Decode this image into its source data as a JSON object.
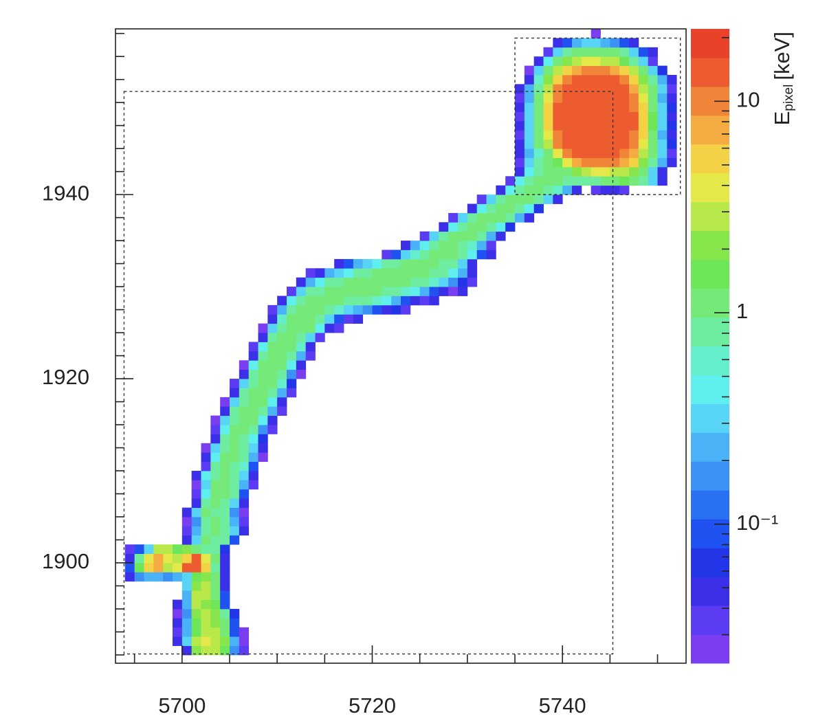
{
  "chart_data": {
    "type": "heatmap",
    "xlim": [
      5693,
      5753
    ],
    "ylim": [
      1889.1,
      1958
    ],
    "xticks": [
      5700,
      5720,
      5740
    ],
    "xminor": [
      5695,
      5705,
      5710,
      5715,
      5725,
      5730,
      5735,
      5745,
      5750
    ],
    "yticks": [
      1900,
      1920,
      1940
    ],
    "yminor": [
      1890,
      1892.5,
      1895,
      1897.5,
      1902.5,
      1905,
      1907.5,
      1910,
      1912.5,
      1915,
      1917.5,
      1922.5,
      1925,
      1927.5,
      1930,
      1932.5,
      1935,
      1937.5,
      1942.5,
      1945,
      1947.5,
      1950,
      1952.5,
      1955,
      1957.5
    ],
    "zlog": true,
    "zlim": [
      0.022,
      22
    ],
    "zticks": [
      10,
      1,
      {
        "value": 0.1,
        "label": "10⁻¹"
      }
    ],
    "zminor": [
      0.03,
      0.04,
      0.05,
      0.06,
      0.07,
      0.08,
      0.09,
      0.2,
      0.3,
      0.4,
      0.5,
      0.6,
      0.7,
      0.8,
      0.9,
      2,
      3,
      4,
      5,
      6,
      7,
      8,
      9,
      20
    ],
    "colorbar_label": {
      "symbol": "E",
      "subscript": "pixel",
      "unit": "[keV]"
    },
    "colors": [
      "#7a3df0",
      "#5b3cf2",
      "#3b2fe8",
      "#2236e8",
      "#1f52f0",
      "#2a70f2",
      "#3b92f4",
      "#4ab2f6",
      "#58d4f6",
      "#5eefee",
      "#64eecb",
      "#6eec9f",
      "#76ea78",
      "#6ee65a",
      "#86e64c",
      "#b8e84a",
      "#e4e848",
      "#f4d246",
      "#f4ac42",
      "#f08438",
      "#ec5c30",
      "#e8422a"
    ],
    "boxes": [
      {
        "x": [
          5693.9,
          5745.3
        ],
        "y": [
          1890.1,
          1951.2
        ]
      },
      {
        "x": [
          5735,
          5752.4
        ],
        "y": [
          1940,
          1957
        ]
      }
    ],
    "rows": [
      {
        "y": 1890,
        "x0": 5700,
        "values": [
          0.05,
          2,
          3,
          3,
          1.5,
          0.15,
          0.04
        ]
      },
      {
        "y": 1891,
        "x0": 5699,
        "values": [
          0.05,
          0.3,
          2.5,
          3.5,
          3,
          2,
          0.2,
          0.03
        ]
      },
      {
        "y": 1892,
        "x0": 5699,
        "values": [
          0.04,
          0.2,
          1.5,
          3,
          2.5,
          1.2,
          0.1,
          0.03
        ]
      },
      {
        "y": 1893,
        "x0": 5699,
        "values": [
          0.05,
          0.2,
          1.5,
          2.5,
          2,
          1,
          0.08
        ]
      },
      {
        "y": 1894,
        "x0": 5699,
        "values": [
          0.03,
          0.15,
          2,
          3,
          2,
          0.8,
          0.06
        ]
      },
      {
        "y": 1895,
        "x0": 5699,
        "values": [
          0.05,
          0.2,
          2.5,
          2,
          1.5,
          0.1
        ]
      },
      {
        "y": 1896,
        "x0": 5700,
        "values": [
          0.2,
          3,
          2.5,
          1.2,
          0.08
        ]
      },
      {
        "y": 1897,
        "x0": 5700,
        "values": [
          0.3,
          2,
          3,
          1,
          0.05
        ]
      },
      {
        "y": 1898,
        "x0": 5694,
        "values": [
          0.05,
          0.15,
          0.2,
          0.2,
          0.15,
          0.2,
          0.3,
          1.5,
          2,
          1.2,
          0.05
        ]
      },
      {
        "y": 1899,
        "x0": 5694,
        "values": [
          0.08,
          1.5,
          5,
          7,
          3,
          4,
          12,
          15,
          6,
          0.8,
          0.05
        ]
      },
      {
        "y": 1900,
        "x0": 5694,
        "values": [
          0.05,
          0.8,
          4,
          8,
          4,
          3,
          6,
          14,
          4,
          1,
          0.05
        ]
      },
      {
        "y": 1901,
        "x0": 5694,
        "values": [
          0.04,
          0.1,
          0.3,
          3,
          2.5,
          1.5,
          2,
          1.2,
          0.8,
          0.7,
          0.06
        ]
      },
      {
        "y": 1902,
        "x0": 5700,
        "values": [
          0.05,
          0.3,
          1,
          0.8,
          0.7,
          0.08
        ]
      },
      {
        "y": 1903,
        "x0": 5700,
        "values": [
          0.04,
          0.2,
          0.9,
          1,
          0.7,
          0.3,
          0.05
        ]
      },
      {
        "y": 1904,
        "x0": 5700,
        "values": [
          0.03,
          0.15,
          0.8,
          1,
          0.8,
          0.2,
          0.04
        ]
      },
      {
        "y": 1905,
        "x0": 5700,
        "values": [
          0.05,
          0.3,
          1,
          0.9,
          0.8,
          0.15,
          0.03
        ]
      },
      {
        "y": 1906,
        "x0": 5701,
        "values": [
          0.05,
          0.8,
          1,
          0.9,
          0.3,
          0.05
        ]
      },
      {
        "y": 1907,
        "x0": 5701,
        "values": [
          0.04,
          0.5,
          1,
          1,
          0.7,
          0.1
        ]
      },
      {
        "y": 1908,
        "x0": 5701,
        "values": [
          0.03,
          0.3,
          1,
          1,
          0.8,
          0.2,
          0.04
        ]
      },
      {
        "y": 1909,
        "x0": 5701,
        "values": [
          0.05,
          0.4,
          0.9,
          1,
          0.9,
          0.3,
          0.05
        ]
      },
      {
        "y": 1910,
        "x0": 5702,
        "values": [
          0.04,
          0.8,
          1,
          0.9,
          0.6,
          0.08
        ]
      },
      {
        "y": 1911,
        "x0": 5702,
        "values": [
          0.05,
          0.5,
          1,
          1,
          0.8,
          0.2,
          0.03
        ]
      },
      {
        "y": 1912,
        "x0": 5702,
        "values": [
          0.03,
          0.3,
          0.9,
          1.1,
          0.9,
          0.3,
          0.05
        ]
      },
      {
        "y": 1913,
        "x0": 5703,
        "values": [
          0.05,
          0.8,
          1,
          0.9,
          0.4,
          0.06
        ]
      },
      {
        "y": 1914,
        "x0": 5703,
        "values": [
          0.04,
          0.5,
          1,
          1,
          0.8,
          0.15,
          0.04
        ]
      },
      {
        "y": 1915,
        "x0": 5703,
        "values": [
          0.03,
          0.3,
          0.9,
          1,
          1,
          0.5,
          0.05
        ]
      },
      {
        "y": 1916,
        "x0": 5704,
        "values": [
          0.05,
          0.7,
          1,
          1,
          0.8,
          0.2,
          0.04
        ]
      },
      {
        "y": 1917,
        "x0": 5704,
        "values": [
          0.03,
          0.3,
          0.9,
          1.1,
          1,
          0.5,
          0.05
        ]
      },
      {
        "y": 1918,
        "x0": 5705,
        "values": [
          0.05,
          0.7,
          1,
          1,
          0.9,
          0.2,
          0.04
        ]
      },
      {
        "y": 1919,
        "x0": 5705,
        "values": [
          0.04,
          0.3,
          0.9,
          1,
          1,
          0.6,
          0.06
        ]
      },
      {
        "y": 1920,
        "x0": 5706,
        "values": [
          0.05,
          0.8,
          1,
          1,
          0.8,
          0.15,
          0.03
        ]
      },
      {
        "y": 1921,
        "x0": 5706,
        "values": [
          0.03,
          0.4,
          1,
          1.1,
          1,
          0.5,
          0.05
        ]
      },
      {
        "y": 1922,
        "x0": 5707,
        "values": [
          0.05,
          0.9,
          1,
          1,
          0.9,
          0.2,
          0.04
        ]
      },
      {
        "y": 1923,
        "x0": 5707,
        "values": [
          0.04,
          0.4,
          1,
          1,
          1,
          0.6,
          0.05
        ]
      },
      {
        "y": 1924,
        "x0": 5708,
        "values": [
          0.05,
          0.8,
          1,
          1,
          0.9,
          0.3,
          0.04
        ]
      },
      {
        "y": 1925,
        "x0": 5708,
        "values": [
          0.03,
          0.3,
          0.9,
          1,
          1,
          1,
          0.5,
          0.05,
          0.04
        ]
      },
      {
        "y": 1926,
        "x0": 5709,
        "values": [
          0.05,
          0.6,
          1,
          1,
          1,
          0.8,
          0.3,
          0.08,
          0.04,
          0.05
        ]
      },
      {
        "y": 1927,
        "x0": 5709,
        "values": [
          0.04,
          0.2,
          0.8,
          1,
          1,
          1,
          0.9,
          0.6,
          0.3,
          0.2,
          0.15,
          0.08,
          0.05,
          0.06,
          0.04
        ]
      },
      {
        "y": 1928,
        "x0": 5710,
        "values": [
          0.05,
          0.4,
          0.9,
          1,
          1,
          1,
          1,
          0.9,
          0.9,
          0.8,
          0.6,
          0.4,
          0.2,
          0.1,
          0.05,
          0.04,
          0.05
        ]
      },
      {
        "y": 1929,
        "x0": 5711,
        "values": [
          0.04,
          0.3,
          0.8,
          0.9,
          1,
          1,
          1,
          1,
          1,
          1,
          0.9,
          0.8,
          0.6,
          0.4,
          0.2,
          0.1,
          0.05,
          0.03,
          0.05
        ]
      },
      {
        "y": 1930,
        "x0": 5712,
        "values": [
          0.05,
          0.2,
          0.4,
          0.8,
          0.9,
          1,
          1,
          1,
          1,
          1,
          1,
          1,
          0.9,
          0.8,
          0.6,
          0.3,
          0.15,
          0.06,
          0.04
        ]
      },
      {
        "y": 1931,
        "x0": 5713,
        "values": [
          0.04,
          0.05,
          0.2,
          0.3,
          0.5,
          0.7,
          0.9,
          1,
          1,
          1,
          1,
          1,
          1,
          0.9,
          0.8,
          0.5,
          0.2,
          0.05
        ]
      },
      {
        "y": 1932,
        "x0": 5716,
        "values": [
          0.05,
          0.1,
          0.2,
          0.3,
          0.5,
          0.7,
          0.9,
          1,
          1,
          1,
          1,
          0.9,
          0.7,
          0.3,
          0.05
        ]
      },
      {
        "y": 1933,
        "x0": 5721,
        "values": [
          0.04,
          0.1,
          0.3,
          0.6,
          0.9,
          1,
          1,
          1,
          0.8,
          0.4,
          0.1,
          0.05
        ]
      },
      {
        "y": 1934,
        "x0": 5723,
        "values": [
          0.05,
          0.2,
          0.5,
          0.9,
          1,
          1,
          0.9,
          0.6,
          0.2,
          0.04
        ]
      },
      {
        "y": 1935,
        "x0": 5725,
        "values": [
          0.04,
          0.3,
          0.8,
          1,
          1,
          1,
          0.7,
          0.2,
          0.05
        ]
      },
      {
        "y": 1936,
        "x0": 5727,
        "values": [
          0.05,
          0.5,
          0.9,
          1,
          1,
          0.9,
          0.4,
          0.06
        ]
      },
      {
        "y": 1937,
        "x0": 5728,
        "values": [
          0.04,
          0.3,
          0.8,
          1,
          1,
          1,
          0.7,
          0.2,
          0.05
        ]
      },
      {
        "y": 1938,
        "x0": 5730,
        "values": [
          0.05,
          0.5,
          0.9,
          1,
          1,
          0.9,
          0.5,
          0.06
        ]
      },
      {
        "y": 1939,
        "x0": 5731,
        "values": [
          0.04,
          0.3,
          0.8,
          1,
          1,
          1,
          0.8,
          0.3,
          0.05
        ]
      },
      {
        "y": 1940,
        "x0": 5733,
        "values": [
          0.05,
          0.5,
          0.9,
          1,
          1,
          0.9,
          0.6,
          0.2,
          0.05,
          null,
          0.04,
          0.05,
          0.05,
          0.04
        ]
      },
      {
        "y": 1941,
        "x0": 5734,
        "values": [
          0.04,
          0.4,
          0.9,
          1,
          1,
          1,
          0.9,
          0.8,
          0.7,
          0.9,
          1,
          1.2,
          1.5,
          1.2,
          0.8,
          0.3,
          0.05
        ]
      },
      {
        "y": 1942,
        "x0": 5735,
        "values": [
          0.05,
          0.5,
          0.9,
          1,
          1,
          1.2,
          2,
          3,
          3.5,
          3.5,
          3,
          2.5,
          2,
          1.2,
          0.3,
          0.05
        ]
      },
      {
        "y": 1943,
        "x0": 5735,
        "values": [
          0.04,
          0.3,
          0.8,
          1,
          1.5,
          4,
          8,
          10,
          11,
          11,
          10,
          8,
          5,
          2,
          0.8,
          0.2,
          0.05
        ]
      },
      {
        "y": 1944,
        "x0": 5735,
        "values": [
          0.05,
          0.2,
          0.6,
          1.2,
          4,
          10,
          13,
          14,
          15,
          14,
          13,
          11,
          8,
          3,
          1,
          0.3,
          0.04
        ]
      },
      {
        "y": 1945,
        "x0": 5735,
        "values": [
          0.05,
          0.3,
          1,
          3,
          9,
          13,
          14,
          15,
          15,
          15,
          14,
          13,
          10,
          4,
          1.2,
          0.3,
          0.06
        ]
      },
      {
        "y": 1946,
        "x0": 5735,
        "values": [
          0.04,
          0.3,
          1,
          4,
          11,
          14,
          15,
          15,
          16,
          15,
          15,
          14,
          11,
          5,
          1.2,
          0.2,
          0.05
        ]
      },
      {
        "y": 1947,
        "x0": 5735,
        "values": [
          0.05,
          0.3,
          1.2,
          5,
          12,
          15,
          15,
          16,
          16,
          16,
          15,
          14,
          12,
          6,
          1.5,
          0.3,
          0.06
        ]
      },
      {
        "y": 1948,
        "x0": 5735,
        "values": [
          0.04,
          0.3,
          1.2,
          5,
          12,
          15,
          16,
          16,
          16,
          16,
          15,
          14,
          12,
          6,
          1.5,
          0.3,
          0.05
        ]
      },
      {
        "y": 1949,
        "x0": 5735,
        "values": [
          0.05,
          0.3,
          1.2,
          5,
          12,
          15,
          15,
          16,
          16,
          15,
          15,
          14,
          11,
          5,
          1.2,
          0.3,
          0.06
        ]
      },
      {
        "y": 1950,
        "x0": 5735,
        "values": [
          0.04,
          0.2,
          1,
          4,
          11,
          14,
          15,
          15,
          15,
          15,
          14,
          13,
          10,
          4,
          1.2,
          0.2,
          0.05
        ]
      },
      {
        "y": 1951,
        "x0": 5735,
        "values": [
          0.05,
          0.2,
          0.8,
          3,
          9,
          13,
          14,
          15,
          15,
          14,
          13,
          12,
          8,
          3,
          1,
          0.3,
          0.04
        ]
      },
      {
        "y": 1952,
        "x0": 5736,
        "values": [
          0.05,
          0.6,
          2,
          6,
          11,
          13,
          13,
          13,
          13,
          12,
          10,
          6,
          2,
          0.8,
          0.2,
          0.05
        ]
      },
      {
        "y": 1953,
        "x0": 5736,
        "values": [
          0.03,
          0.3,
          1,
          3,
          6,
          8,
          10,
          10,
          9,
          8,
          5,
          2.5,
          1,
          0.3,
          0.06
        ]
      },
      {
        "y": 1954,
        "x0": 5737,
        "values": [
          0.05,
          0.5,
          1,
          2,
          3,
          3.5,
          3.5,
          3,
          2.5,
          1.5,
          0.8,
          0.3,
          0.04
        ]
      },
      {
        "y": 1955,
        "x0": 5738,
        "values": [
          0.04,
          0.3,
          0.8,
          1,
          1.2,
          1.3,
          1.2,
          1,
          0.8,
          0.3,
          0.1,
          0.05
        ]
      },
      {
        "y": 1956,
        "x0": 5739,
        "values": [
          0.05,
          0.1,
          0.2,
          0.3,
          0.3,
          0.2,
          0.15,
          0.08,
          0.05
        ]
      },
      {
        "y": 1957,
        "x0": 5743,
        "values": [
          0.03
        ]
      }
    ]
  }
}
